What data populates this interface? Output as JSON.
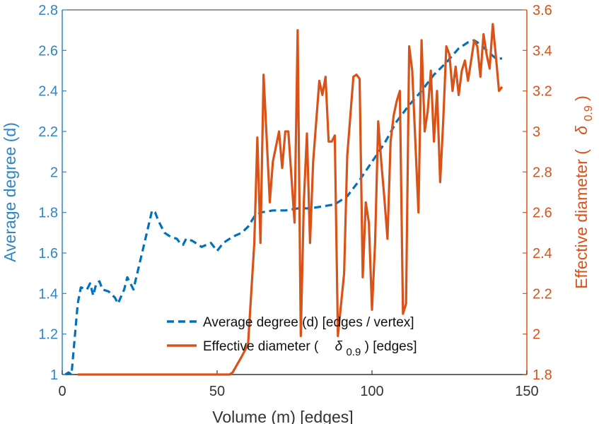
{
  "chart_data": {
    "type": "line",
    "xlabel": "Volume (m) [edges]",
    "ylabel_left": "Average degree (d)",
    "ylabel_right_prefix": "Effective diameter (",
    "ylabel_right_symbol": "δ",
    "ylabel_right_sub": "0.9",
    "ylabel_right_suffix": ")",
    "xlim": [
      0,
      150
    ],
    "ylim_left": [
      1,
      2.8
    ],
    "ylim_right": [
      1.8,
      3.6
    ],
    "xticks": [
      "0",
      "50",
      "100",
      "150"
    ],
    "yticks_left": [
      "1",
      "1.2",
      "1.4",
      "1.6",
      "1.8",
      "2",
      "2.2",
      "2.4",
      "2.6",
      "2.8"
    ],
    "yticks_right": [
      "1.8",
      "2",
      "2.2",
      "2.4",
      "2.6",
      "2.8",
      "3",
      "3.2",
      "3.4",
      "3.6"
    ],
    "legend_position": "bottom-center",
    "legend": {
      "avg_label": "Average degree (d) [edges / vertex]",
      "diam_prefix": "Effective diameter (",
      "diam_symbol": "δ",
      "diam_sub": "0.9",
      "diam_suffix": ") [edges]"
    },
    "colors": {
      "left": "#2f86c6",
      "right": "#d95319",
      "axis_x": "#333333"
    },
    "series": [
      {
        "axis": "left",
        "style": "dashed",
        "color": "#0072bd",
        "x": [
          1,
          2,
          3,
          5,
          6,
          8,
          9,
          10,
          11,
          12,
          13,
          15,
          17,
          18,
          20,
          21,
          22,
          23,
          25,
          27,
          29,
          30,
          31,
          33,
          35,
          37,
          38,
          39,
          40,
          42,
          45,
          48,
          50,
          52,
          55,
          58,
          60,
          62,
          64,
          68,
          72,
          76,
          80,
          84,
          88,
          92,
          96,
          100,
          104,
          108,
          112,
          116,
          120,
          124,
          128,
          131,
          133,
          135,
          137,
          140,
          142
        ],
        "y": [
          1.0,
          1.01,
          1.0,
          1.35,
          1.43,
          1.42,
          1.45,
          1.39,
          1.45,
          1.46,
          1.42,
          1.41,
          1.38,
          1.35,
          1.42,
          1.48,
          1.45,
          1.42,
          1.55,
          1.68,
          1.81,
          1.8,
          1.76,
          1.7,
          1.68,
          1.67,
          1.65,
          1.64,
          1.67,
          1.66,
          1.63,
          1.65,
          1.61,
          1.65,
          1.68,
          1.7,
          1.73,
          1.78,
          1.8,
          1.81,
          1.81,
          1.82,
          1.82,
          1.83,
          1.84,
          1.88,
          1.96,
          2.05,
          2.14,
          2.25,
          2.33,
          2.4,
          2.48,
          2.54,
          2.61,
          2.64,
          2.65,
          2.63,
          2.6,
          2.56,
          2.56
        ]
      },
      {
        "axis": "right",
        "style": "solid",
        "color": "#d95319",
        "x": [
          5,
          20,
          40,
          54,
          55,
          58,
          60,
          62,
          63,
          64,
          65,
          67,
          68,
          70,
          71,
          72,
          73,
          75,
          76,
          77,
          78,
          79,
          80,
          81,
          83,
          84,
          85,
          86,
          87,
          88,
          89,
          91,
          92,
          94,
          95,
          96,
          97,
          98,
          99,
          100,
          101,
          102,
          103,
          104,
          105,
          106,
          107,
          108,
          109,
          110,
          111,
          112,
          113,
          115,
          116,
          117,
          118,
          119,
          120,
          121,
          122,
          123,
          124,
          125,
          126,
          127,
          128,
          129,
          130,
          131,
          132,
          133,
          134,
          135,
          136,
          137,
          138,
          139,
          140,
          141,
          142
        ],
        "y": [
          1.8,
          1.8,
          1.8,
          1.8,
          1.81,
          1.89,
          1.95,
          2.45,
          2.97,
          2.45,
          3.28,
          2.65,
          2.85,
          3.0,
          2.82,
          3.0,
          3.0,
          2.55,
          3.5,
          1.99,
          2.65,
          2.99,
          2.45,
          2.85,
          3.25,
          3.18,
          3.27,
          2.95,
          2.95,
          2.98,
          1.99,
          2.3,
          2.88,
          3.27,
          3.28,
          3.26,
          2.28,
          2.65,
          2.55,
          2.12,
          2.45,
          3.05,
          2.85,
          2.67,
          2.47,
          2.95,
          3.08,
          3.15,
          3.2,
          2.1,
          2.15,
          3.42,
          3.3,
          2.6,
          3.45,
          3.0,
          3.1,
          3.3,
          2.95,
          3.2,
          2.75,
          3.05,
          3.42,
          3.38,
          3.2,
          3.32,
          3.18,
          3.3,
          3.35,
          3.25,
          3.35,
          3.45,
          3.42,
          3.27,
          3.48,
          3.38,
          3.31,
          3.53,
          3.37,
          3.2,
          3.22
        ]
      }
    ]
  }
}
